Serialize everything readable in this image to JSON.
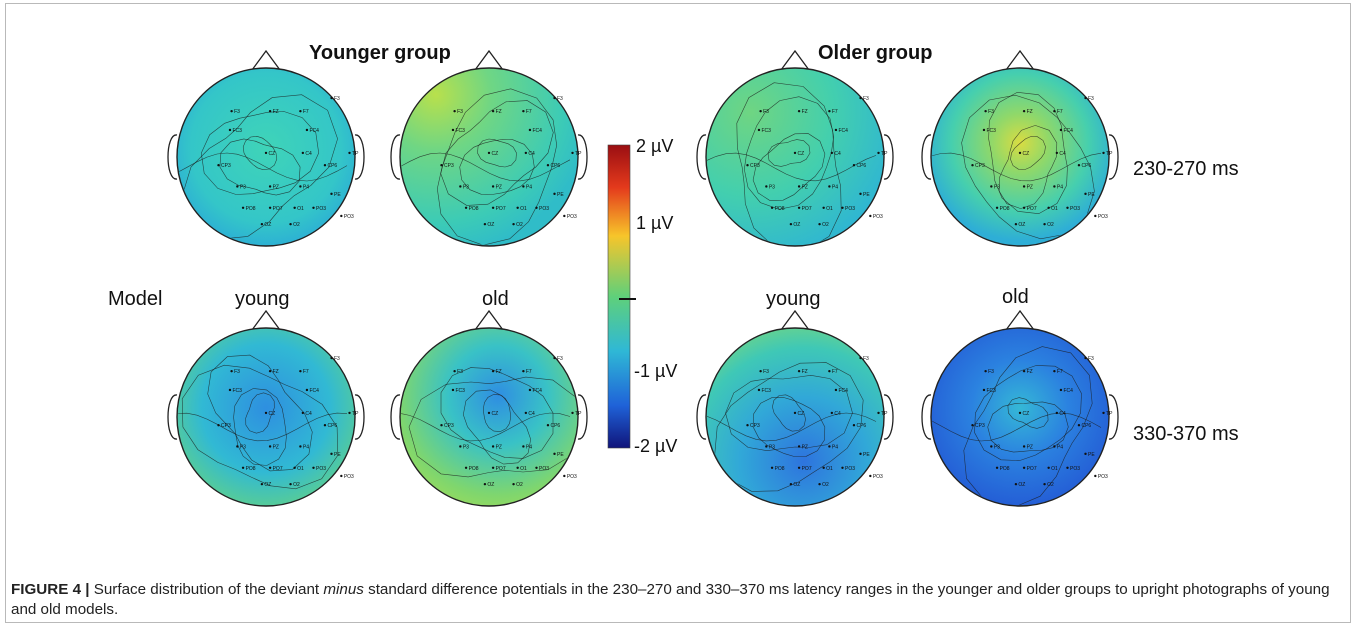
{
  "figure": {
    "groups": [
      "Younger group",
      "Older group"
    ],
    "model_row_label": "Model",
    "model_labels": [
      "young",
      "old",
      "young",
      "old"
    ],
    "latencies": [
      "230-270 ms",
      "330-370 ms"
    ],
    "colorbar": {
      "tick_labels": [
        "2 µV",
        "1 µV",
        "-1 µV",
        "-2 µV"
      ],
      "colors": [
        "#9a0e12",
        "#e43a1c",
        "#f7c52a",
        "#5fd07a",
        "#2fb8d6",
        "#1f62d8",
        "#10147a"
      ]
    },
    "electrode_labels": [
      "F3",
      "FZ",
      "F7",
      "FC3",
      "FC4",
      "CP3",
      "CZ",
      "C4",
      "CP6",
      "P3",
      "PZ",
      "P4",
      "PO8",
      "PO7",
      "PO3",
      "O1",
      "OZ",
      "O2",
      "TP",
      "PE"
    ]
  },
  "caption": {
    "label": "FIGURE 4 |",
    "text_before": " Surface distribution of the deviant ",
    "emphasis": "minus",
    "text_after": " standard difference potentials in the 230–270 and 330–370 ms latency ranges in the younger and older groups to upright photographs of young and old models."
  }
}
